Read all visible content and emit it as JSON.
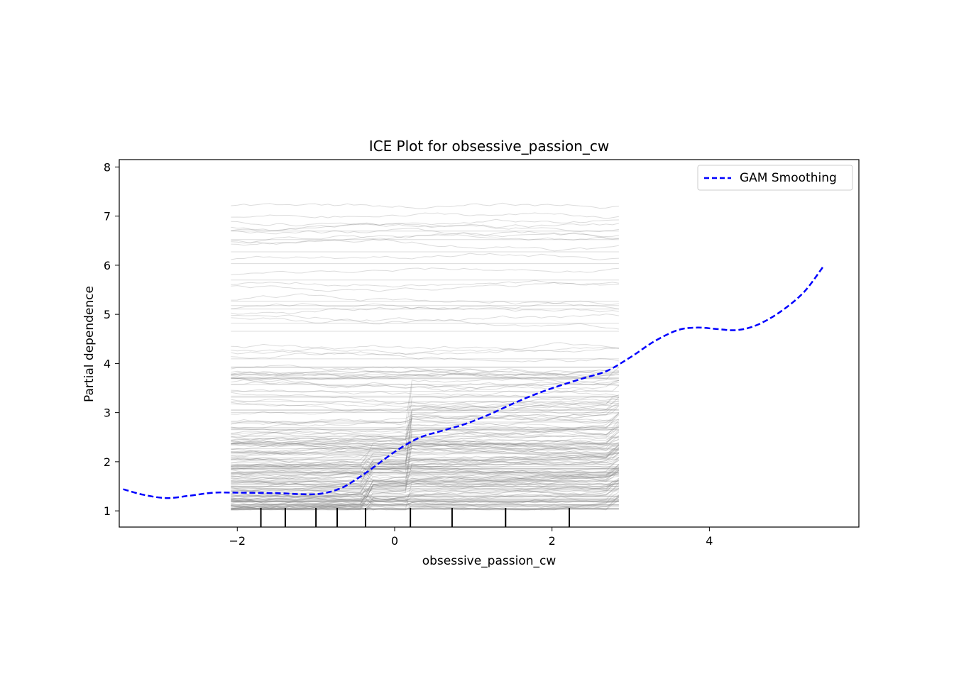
{
  "chart_data": {
    "type": "line",
    "title": "ICE Plot for obsessive_passion_cw",
    "xlabel": "obsessive_passion_cw",
    "ylabel": "Partial dependence",
    "xlim": [
      -3.5,
      5.9
    ],
    "ylim": [
      0.67,
      8.15
    ],
    "x_ticks": [
      -2,
      0,
      2,
      4
    ],
    "x_tick_labels": [
      "−2",
      "0",
      "2",
      "4"
    ],
    "y_ticks": [
      1,
      2,
      3,
      4,
      5,
      6,
      7,
      8
    ],
    "y_tick_labels": [
      "1",
      "2",
      "3",
      "4",
      "5",
      "6",
      "7",
      "8"
    ],
    "grid": false,
    "legend": {
      "placement": "top-right",
      "entries": [
        "GAM Smoothing"
      ]
    },
    "ice_lines": {
      "color": "#808080",
      "x_range": [
        -2.08,
        2.85
      ],
      "y_range": [
        1.02,
        7.3
      ],
      "approx_count": 220
    },
    "rug_x": [
      -1.7,
      -1.39,
      -1.0,
      -0.73,
      -0.37,
      0.2,
      0.73,
      1.41,
      2.22
    ],
    "series": [
      {
        "name": "GAM Smoothing",
        "color": "#0000ff",
        "style": "dashed",
        "x": [
          -3.45,
          -3.2,
          -2.9,
          -2.6,
          -2.3,
          -2.0,
          -1.5,
          -1.0,
          -0.7,
          -0.5,
          -0.3,
          0.0,
          0.3,
          0.6,
          0.9,
          1.2,
          1.5,
          1.8,
          2.1,
          2.4,
          2.7,
          3.0,
          3.3,
          3.6,
          3.85,
          4.1,
          4.35,
          4.6,
          4.9,
          5.2,
          5.45
        ],
        "y": [
          1.44,
          1.33,
          1.26,
          1.31,
          1.37,
          1.37,
          1.36,
          1.34,
          1.45,
          1.63,
          1.85,
          2.2,
          2.48,
          2.63,
          2.77,
          2.96,
          3.18,
          3.38,
          3.55,
          3.7,
          3.85,
          4.13,
          4.45,
          4.68,
          4.73,
          4.7,
          4.68,
          4.78,
          5.05,
          5.45,
          5.98
        ]
      }
    ]
  }
}
